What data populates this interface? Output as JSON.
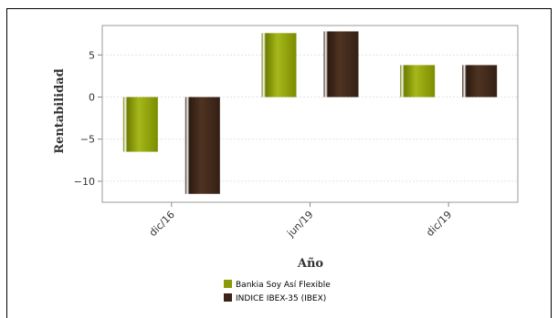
{
  "chart_data": {
    "type": "bar",
    "categories": [
      "dic/16",
      "jun/19",
      "dic/19"
    ],
    "series": [
      {
        "name": "Bankia Soy Así Flexible",
        "values": [
          -6.5,
          7.6,
          3.8
        ],
        "color": "#8a9a06"
      },
      {
        "name": "INDICE IBEX-35 (IBEX)",
        "values": [
          -11.5,
          7.8,
          3.8
        ],
        "color": "#3b2417"
      }
    ],
    "title": "",
    "xlabel": "Año",
    "ylabel": "Rentabilidad",
    "ylim": [
      -12.5,
      8.5
    ],
    "yticks": [
      5,
      0,
      -5,
      -10
    ],
    "grid": true,
    "legend_position": "bottom"
  }
}
